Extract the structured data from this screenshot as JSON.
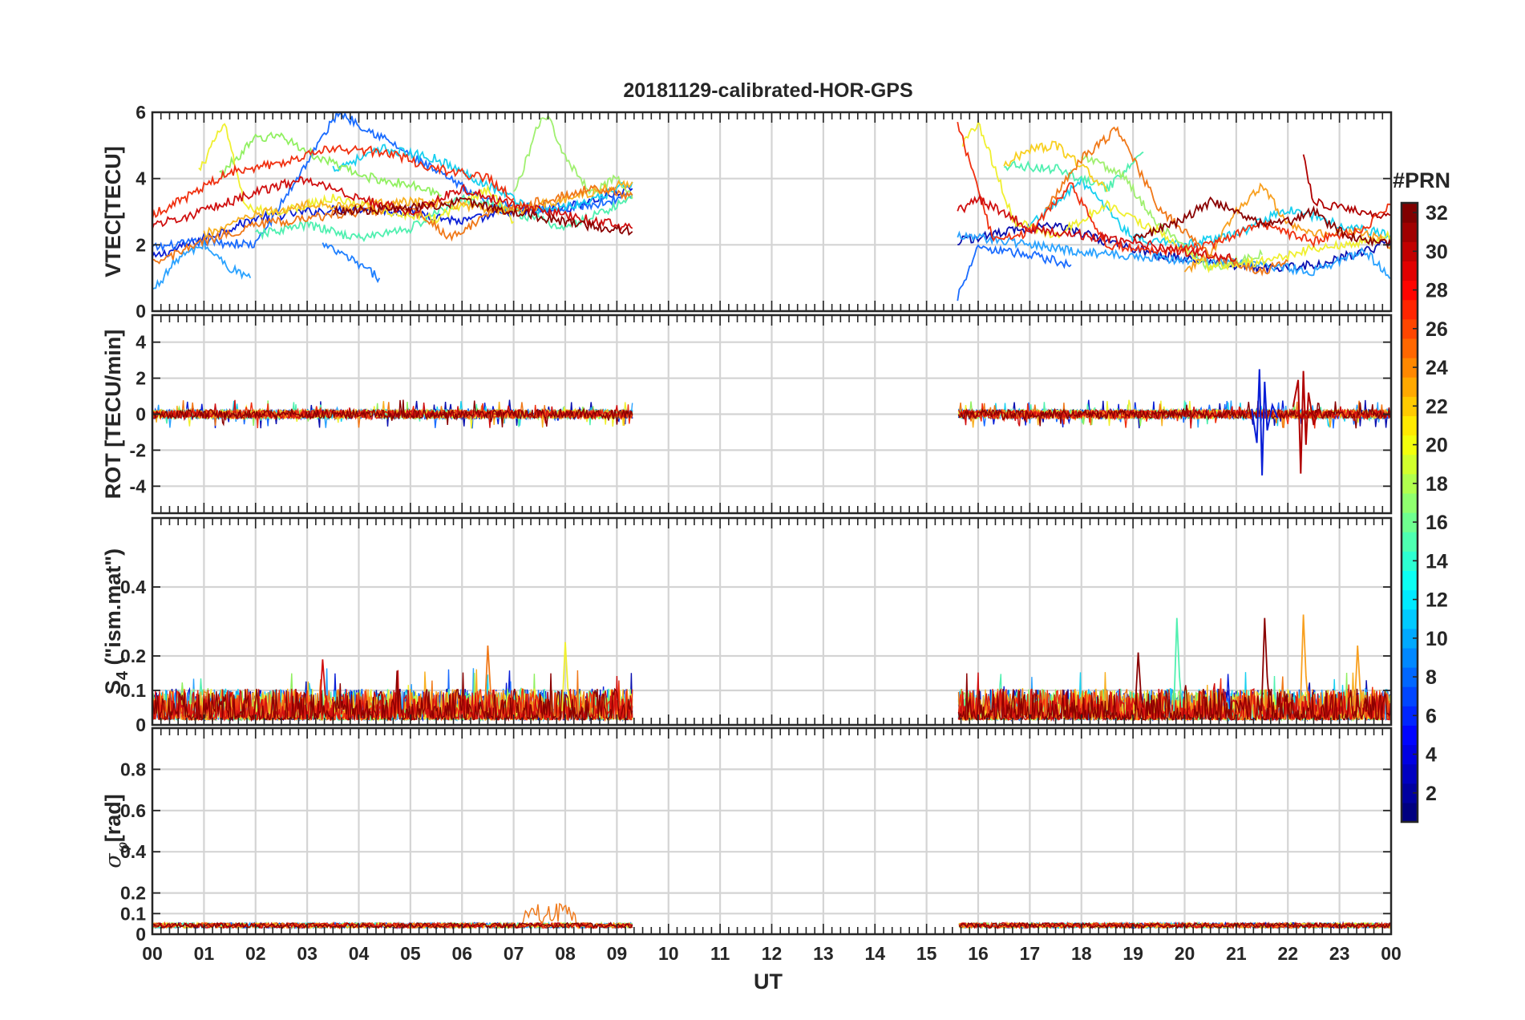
{
  "chart_data": {
    "type": "line",
    "title": "20181129-calibrated-HOR-GPS",
    "xlabel": "UT",
    "x_tick_labels": [
      "00",
      "01",
      "02",
      "03",
      "04",
      "05",
      "06",
      "07",
      "08",
      "09",
      "10",
      "11",
      "12",
      "13",
      "14",
      "15",
      "16",
      "17",
      "18",
      "19",
      "20",
      "21",
      "22",
      "23",
      "00"
    ],
    "xlim": [
      0,
      24
    ],
    "grid": true,
    "data_gaps_hours": [
      [
        9.3,
        15.6
      ]
    ],
    "panels": [
      {
        "id": "vtec",
        "ylabel": "VTEC[TECU]",
        "ylim": [
          0,
          6
        ],
        "yticks": [
          0,
          2,
          4,
          6
        ],
        "series": [
          {
            "prn": 3,
            "color": "#0a1fd6",
            "x": [
              0,
              1,
              2,
              3,
              4,
              5,
              6,
              7,
              8,
              9.3
            ],
            "values": [
              1.6,
              2.2,
              2.8,
              3.0,
              3.1,
              3.0,
              2.7,
              3.0,
              3.1,
              3.7
            ]
          },
          {
            "prn": 6,
            "color": "#1a6cff",
            "x": [
              0,
              1,
              2,
              3,
              3.6,
              4.5,
              5.5,
              6.5,
              7.5,
              8.5,
              9.3
            ],
            "values": [
              1.9,
              2.1,
              2.0,
              4.5,
              6.0,
              5.2,
              4.2,
              3.3,
              3.1,
              3.2,
              3.5
            ]
          },
          {
            "prn": 9,
            "color": "#2aa2ff",
            "x": [
              0,
              0.5,
              1,
              1.5,
              1.9
            ],
            "values": [
              0.6,
              1.6,
              2.0,
              1.3,
              1.0
            ]
          },
          {
            "prn": 8,
            "color": "#1e7fff",
            "x": [
              3.3,
              3.8,
              4.4
            ],
            "values": [
              2.0,
              1.6,
              1.0
            ]
          },
          {
            "prn": 12,
            "color": "#18d0f0",
            "x": [
              3.5,
              4.5,
              5.5,
              6.5,
              7.5,
              8.5,
              9.3
            ],
            "values": [
              4.3,
              4.9,
              4.6,
              3.8,
              3.0,
              3.3,
              3.9
            ]
          },
          {
            "prn": 15,
            "color": "#50f0b0",
            "x": [
              2.0,
              3.0,
              4.0,
              5.0,
              6.0,
              7.0,
              8.0,
              9.3
            ],
            "values": [
              2.3,
              2.6,
              2.2,
              2.5,
              3.4,
              3.0,
              2.5,
              3.4
            ]
          },
          {
            "prn": 17,
            "color": "#90f060",
            "x": [
              1.3,
              2.0,
              2.5,
              3.0,
              4.0,
              5.0,
              5.6
            ],
            "values": [
              4.1,
              5.2,
              5.3,
              4.8,
              4.1,
              3.8,
              3.5
            ]
          },
          {
            "prn": 18,
            "color": "#a0f070",
            "x": [
              7.0,
              7.5,
              7.7,
              8.0,
              8.5,
              9.0,
              9.3
            ],
            "values": [
              3.5,
              5.7,
              5.8,
              4.6,
              3.6,
              4.0,
              3.4
            ]
          },
          {
            "prn": 20,
            "color": "#f0f030",
            "x": [
              0.9,
              1.4,
              1.8,
              2.5,
              3.5,
              4.5,
              5.5,
              6.5,
              7.0
            ],
            "values": [
              4.2,
              5.7,
              3.1,
              3.0,
              3.4,
              3.0,
              2.8,
              3.7,
              2.7
            ]
          },
          {
            "prn": 23,
            "color": "#f8b020",
            "x": [
              1.0,
              2.0,
              3.0,
              4.0,
              5.0,
              6.0,
              7.0,
              8.0,
              9.3
            ],
            "values": [
              2.3,
              2.9,
              3.2,
              3.2,
              3.3,
              3.2,
              3.0,
              3.4,
              3.9
            ]
          },
          {
            "prn": 25,
            "color": "#f07818",
            "x": [
              0,
              1,
              2,
              3,
              4,
              5,
              5.8,
              6.5,
              7.5,
              8.5,
              9.3
            ],
            "values": [
              1.4,
              2.1,
              2.6,
              2.8,
              3.0,
              3.1,
              2.2,
              2.9,
              3.3,
              3.7,
              3.5
            ]
          },
          {
            "prn": 27,
            "color": "#f03010",
            "x": [
              0,
              0.5,
              1.5,
              2.5,
              3.5,
              4.5,
              5.5,
              6.5,
              7.0
            ],
            "values": [
              2.9,
              3.3,
              4.2,
              4.5,
              4.9,
              4.8,
              4.3,
              4.0,
              3.4
            ]
          },
          {
            "prn": 29,
            "color": "#d01010",
            "x": [
              0,
              1,
              2,
              3,
              4,
              5,
              6,
              7,
              8,
              9.3
            ],
            "values": [
              2.6,
              3.0,
              3.6,
              4.0,
              3.4,
              3.0,
              3.7,
              3.2,
              2.9,
              2.5
            ]
          },
          {
            "prn": 31,
            "color": "#8a0000",
            "x": [
              3.5,
              5,
              6,
              7,
              8,
              9.3
            ],
            "values": [
              3.0,
              3.1,
              3.3,
              3.0,
              2.7,
              2.4
            ]
          },
          {
            "prn": 2,
            "color": "#0a10b0",
            "x": [
              15.6,
              16.5,
              17.5,
              18.5,
              19.5,
              20.5,
              21.5,
              22.5,
              23.5,
              24
            ],
            "values": [
              2.1,
              2.4,
              2.6,
              2.1,
              1.7,
              1.5,
              1.3,
              1.4,
              1.8,
              2.1
            ]
          },
          {
            "prn": 6,
            "color": "#1a6cff",
            "x": [
              15.6,
              16,
              17,
              17.8
            ],
            "values": [
              0.4,
              1.9,
              1.7,
              1.4
            ]
          },
          {
            "prn": 9,
            "color": "#2aa2ff",
            "x": [
              15.6,
              16.5,
              17.5,
              18.5,
              19.5,
              20.5,
              21.5,
              22.5,
              23.5,
              24
            ],
            "values": [
              2.3,
              2.1,
              1.9,
              1.7,
              1.6,
              1.5,
              1.4,
              1.2,
              1.8,
              1.0
            ]
          },
          {
            "prn": 12,
            "color": "#18d0f0",
            "x": [
              17,
              18,
              19,
              20,
              21,
              22,
              23,
              24
            ],
            "values": [
              2.6,
              3.9,
              2.2,
              2.0,
              2.3,
              3.1,
              2.6,
              2.3
            ]
          },
          {
            "prn": 15,
            "color": "#50f0b0",
            "x": [
              16.5,
              17.5,
              18.5,
              19.2
            ],
            "values": [
              4.4,
              4.3,
              3.7,
              4.8
            ]
          },
          {
            "prn": 18,
            "color": "#a0f070",
            "x": [
              18.0,
              18.8,
              19.5,
              20.5,
              21.5
            ],
            "values": [
              4.7,
              4.1,
              2.6,
              1.3,
              1.7
            ]
          },
          {
            "prn": 20,
            "color": "#f0f030",
            "x": [
              15.7,
              16.0,
              16.7,
              17.5,
              18.5,
              19.5,
              20.5,
              21.5,
              22.5,
              23.5,
              24
            ],
            "values": [
              5.0,
              5.7,
              2.7,
              2.3,
              3.2,
              2.4,
              1.3,
              1.5,
              1.9,
              2.1,
              2.3
            ]
          },
          {
            "prn": 22,
            "color": "#f8d020",
            "x": [
              16.5,
              17.0,
              17.5,
              18.0,
              18.5
            ],
            "values": [
              4.4,
              4.9,
              5.0,
              4.4,
              3.6
            ]
          },
          {
            "prn": 24,
            "color": "#f8a020",
            "x": [
              20.0,
              20.5,
              21.0,
              21.5,
              22.0,
              22.8,
              23.5,
              24
            ],
            "values": [
              1.2,
              1.7,
              3.0,
              3.8,
              2.6,
              2.3,
              2.4,
              2.0
            ]
          },
          {
            "prn": 25,
            "color": "#f07818",
            "x": [
              17.3,
              18.0,
              18.7,
              19.5,
              20.5,
              21.5,
              22.0
            ],
            "values": [
              3.1,
              4.6,
              5.5,
              3.1,
              1.7,
              1.2,
              1.5
            ]
          },
          {
            "prn": 27,
            "color": "#f03010",
            "x": [
              15.6,
              16.3,
              17.0,
              17.8,
              18.5,
              19.5,
              20.5,
              21.5,
              22.5,
              23.5,
              24
            ],
            "values": [
              5.7,
              2.1,
              2.4,
              3.8,
              2.0,
              1.8,
              2.0,
              2.6,
              2.1,
              2.5,
              3.2
            ]
          },
          {
            "prn": 29,
            "color": "#d01010",
            "x": [
              15.6,
              16.0,
              17.0,
              18.0,
              19.0,
              20.0,
              21.0
            ],
            "values": [
              3.0,
              3.4,
              2.5,
              2.3,
              2.1,
              1.8,
              1.6
            ]
          },
          {
            "prn": 30,
            "color": "#b00000",
            "x": [
              22.3,
              22.5,
              23.0,
              23.5,
              24
            ],
            "values": [
              4.7,
              3.3,
              3.1,
              3.0,
              2.9
            ]
          },
          {
            "prn": 31,
            "color": "#8a0000",
            "x": [
              19.0,
              19.8,
              20.5,
              21.0,
              21.5,
              22.0,
              22.5,
              23.0,
              23.5,
              24
            ],
            "values": [
              2.2,
              2.6,
              3.3,
              3.0,
              2.6,
              2.7,
              3.0,
              2.4,
              2.1,
              2.0
            ]
          }
        ]
      },
      {
        "id": "rot",
        "ylabel": "ROT [TECU/min]",
        "ylim": [
          -5.5,
          5.5
        ],
        "yticks": [
          -4,
          -2,
          0,
          2,
          4
        ],
        "series_summary": "fluctuations within about ±0.8 TECU/min for all PRNs",
        "spikes": [
          {
            "prn": 3,
            "color": "#0a1fd6",
            "x": [
              21.3,
              21.4,
              21.45,
              21.5,
              21.55,
              21.6,
              21.7,
              21.8
            ],
            "values": [
              0.3,
              -1.6,
              2.5,
              -3.4,
              1.8,
              -0.9,
              0.5,
              -0.2
            ]
          },
          {
            "prn": 30,
            "color": "#b00000",
            "x": [
              22.1,
              22.2,
              22.25,
              22.3,
              22.35,
              22.4,
              22.5,
              22.6
            ],
            "values": [
              0.4,
              1.9,
              -3.3,
              2.4,
              -1.7,
              1.2,
              -0.6,
              0.3
            ]
          }
        ]
      },
      {
        "id": "s4",
        "ylabel": "S4 (\"ism.mat\")",
        "ylim": [
          0,
          0.6
        ],
        "yticks": [
          0,
          0.1,
          0.2,
          0.4
        ],
        "y_tick_labels": [
          "0",
          "0.1",
          "0.2",
          "0.4"
        ],
        "series_summary": "mostly 0.01–0.12 for all PRNs",
        "peaks": [
          {
            "x": 3.3,
            "value": 0.19,
            "color": "#d01010"
          },
          {
            "x": 6.5,
            "value": 0.23,
            "color": "#f07818"
          },
          {
            "x": 8.0,
            "value": 0.24,
            "color": "#f0f030"
          },
          {
            "x": 19.85,
            "value": 0.31,
            "color": "#50f0b0"
          },
          {
            "x": 21.55,
            "value": 0.31,
            "color": "#8a0000"
          },
          {
            "x": 22.3,
            "value": 0.32,
            "color": "#f8a020"
          },
          {
            "x": 23.35,
            "value": 0.23,
            "color": "#f8a020"
          },
          {
            "x": 19.1,
            "value": 0.21,
            "color": "#8a0000"
          }
        ]
      },
      {
        "id": "sigma_phi",
        "ylabel": "σφ[rad]",
        "ylim": [
          0,
          1
        ],
        "yticks": [
          0,
          0.1,
          0.2,
          0.4,
          0.6,
          0.8
        ],
        "y_tick_labels": [
          "0",
          "0.1",
          "0.2",
          "0.4",
          "0.6",
          "0.8"
        ],
        "series_summary": "about 0.03–0.06 rad; maximum about 0.15 near 07:30–08:00"
      }
    ],
    "colorbar": {
      "label": "#PRN",
      "range": [
        1,
        32
      ],
      "tick_labels": [
        "2",
        "4",
        "6",
        "8",
        "10",
        "12",
        "14",
        "16",
        "18",
        "20",
        "22",
        "24",
        "26",
        "28",
        "30",
        "32"
      ],
      "colormap": "jet"
    }
  }
}
